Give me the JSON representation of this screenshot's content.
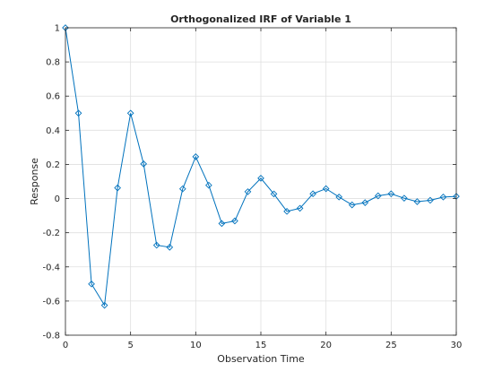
{
  "chart_data": {
    "type": "line",
    "title": "Orthogonalized IRF of Variable 1",
    "xlabel": "Observation Time",
    "ylabel": "Response",
    "xlim": [
      0,
      30
    ],
    "ylim": [
      -0.8,
      1
    ],
    "xticks": [
      0,
      5,
      10,
      15,
      20,
      25,
      30
    ],
    "xtick_labels": [
      "0",
      "5",
      "10",
      "15",
      "20",
      "25",
      "30"
    ],
    "yticks": [
      -0.8,
      -0.6,
      -0.4,
      -0.2,
      0,
      0.2,
      0.4,
      0.6,
      0.8,
      1
    ],
    "ytick_labels": [
      "-0.8",
      "-0.6",
      "-0.4",
      "-0.2",
      "0",
      "0.2",
      "0.4",
      "0.6",
      "0.8",
      "1"
    ],
    "grid": true,
    "series": [
      {
        "color": "#0072bd",
        "marker": "diamond",
        "x": [
          0,
          1,
          2,
          3,
          4,
          5,
          6,
          7,
          8,
          9,
          10,
          11,
          12,
          13,
          14,
          15,
          16,
          17,
          18,
          19,
          20,
          21,
          22,
          23,
          24,
          25,
          26,
          27,
          28,
          29,
          30
        ],
        "y": [
          1.0,
          0.5,
          -0.5,
          -0.625,
          0.0625,
          0.5,
          0.203,
          -0.273,
          -0.285,
          0.057,
          0.245,
          0.078,
          -0.146,
          -0.131,
          0.04,
          0.119,
          0.027,
          -0.075,
          -0.057,
          0.028,
          0.058,
          0.009,
          -0.037,
          -0.024,
          0.016,
          0.028,
          0.002,
          -0.018,
          -0.01,
          0.009,
          0.013
        ]
      }
    ]
  }
}
